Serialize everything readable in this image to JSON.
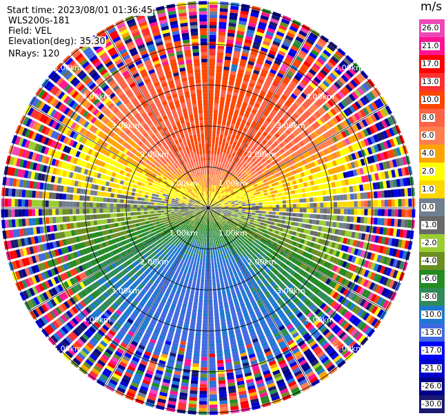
{
  "header": {
    "start_time": "Start time: 2023/08/01 01:36:45",
    "instrument": "WLS200s-181",
    "field": "Field: VEL",
    "elevation": "Elevation(deg): 35.30",
    "nrays": "NRays: 120"
  },
  "chart_data": {
    "type": "heatmap",
    "projection": "polar-ppi",
    "field": "VEL",
    "units": "m/s",
    "n_rays": 120,
    "elevation_deg": 35.3,
    "max_range_km": 5.05,
    "range_rings_km": [
      1,
      2,
      3,
      4,
      5
    ],
    "ring_labels": [
      "1.00km",
      "2.00km",
      "3.00km",
      "4.00km",
      "5.00km"
    ],
    "radial_lines_deg": [
      0,
      30,
      60,
      90,
      120,
      150,
      180,
      210,
      240,
      270,
      300,
      330
    ],
    "pattern": "positive velocities (red/orange) toward north, negative (blue/green) toward south, noisy beyond ~3.5 km",
    "colorbar": {
      "title": "m/s",
      "labels": [
        "26.0",
        "21.0",
        "17.0",
        "13.0",
        "10.0",
        "8.0",
        "6.0",
        "4.0",
        "2.0",
        "1.0",
        "0.0",
        "-1.0",
        "-2.0",
        "-4.0",
        "-6.0",
        "-8.0",
        "-10.0",
        "-13.0",
        "-17.0",
        "-21.0",
        "-26.0",
        "-30.0"
      ],
      "colors": [
        "#f047b8",
        "#ff1493",
        "#ff0000",
        "#ff3030",
        "#ff4500",
        "#ff6347",
        "#ff7f50",
        "#ffa500",
        "#ffff00",
        "#ffd700",
        "#708090",
        "#696969",
        "#9acd32",
        "#6b8e23",
        "#228b22",
        "#2e8b57",
        "#1e78d2",
        "#4169e1",
        "#0000ff",
        "#0000cd",
        "#00008b",
        "#191970"
      ]
    }
  }
}
